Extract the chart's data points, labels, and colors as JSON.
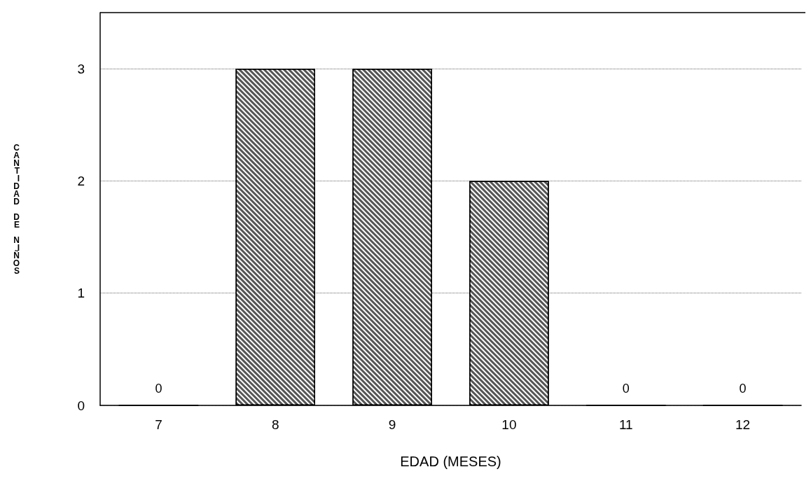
{
  "chart_data": {
    "type": "bar",
    "xlabel": "EDAD (MESES)",
    "ylabel": "CANTIDAD DE NIÑOS",
    "categories": [
      "7",
      "8",
      "9",
      "10",
      "11",
      "12"
    ],
    "values": [
      0,
      3,
      3,
      2,
      0,
      0
    ],
    "value_labels": [
      "0",
      null,
      null,
      null,
      "0",
      "0"
    ],
    "color": "#555555",
    "ylim": [
      0,
      3.5
    ],
    "yticks": [
      0,
      1,
      2,
      3
    ],
    "grid": "y"
  }
}
